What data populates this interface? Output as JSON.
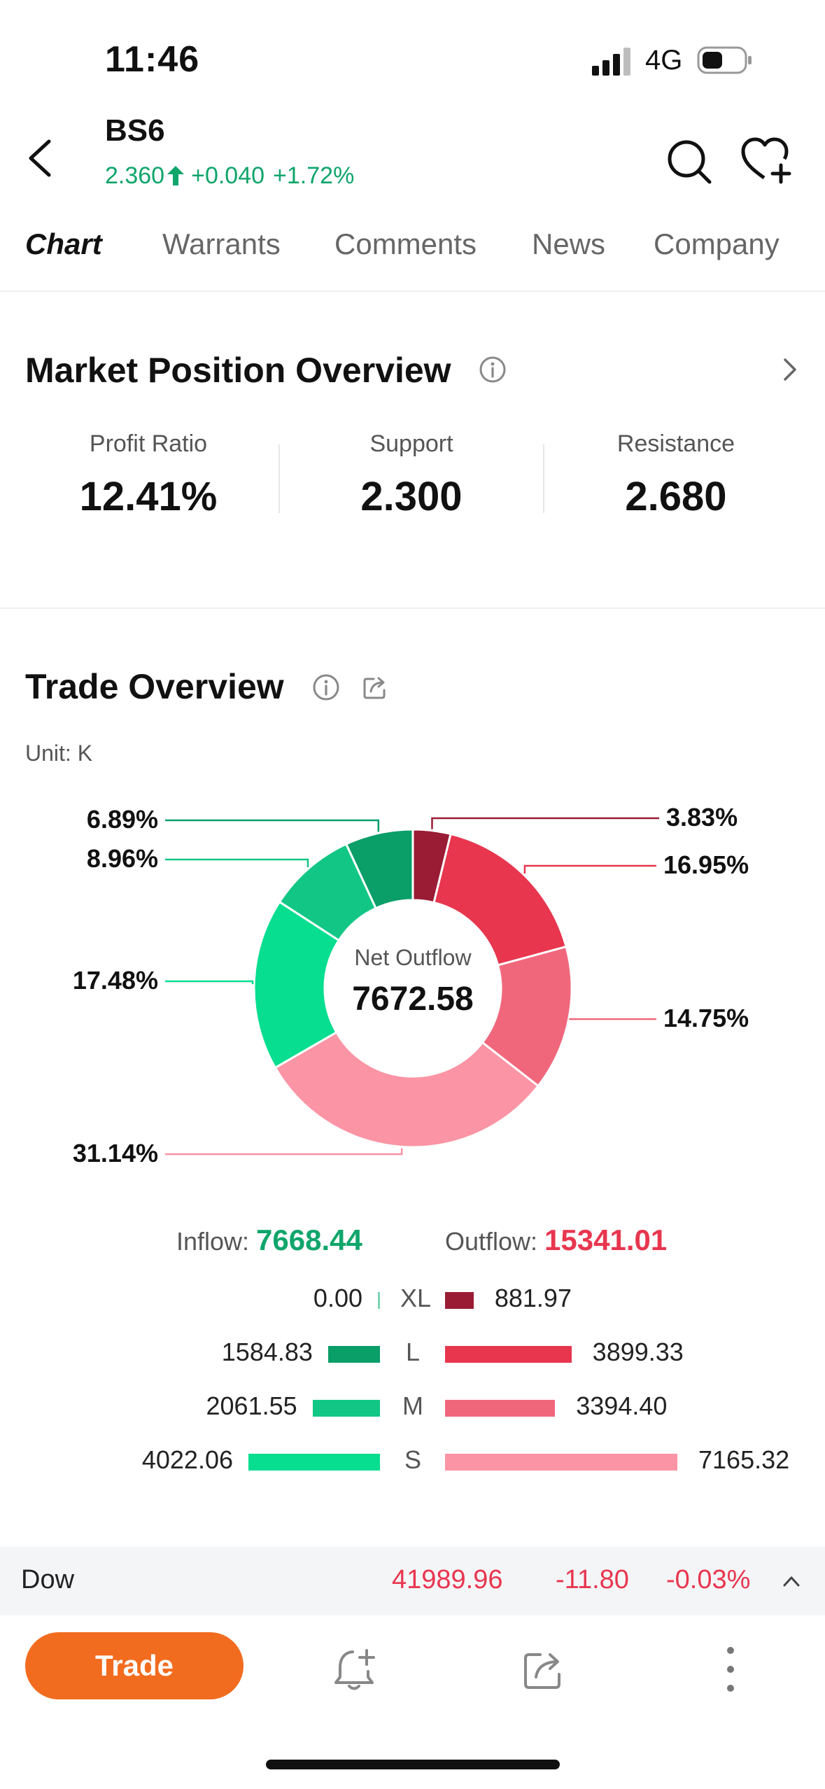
{
  "status_bar": {
    "time": "11:46",
    "network": "4G",
    "signal_icon": "signal-bars-icon",
    "battery_icon": "battery-icon"
  },
  "header": {
    "ticker": "BS6",
    "price": "2.360",
    "change": "+0.040",
    "change_pct": "+1.72%",
    "up_color": "#10a56b",
    "icons": [
      "back-arrow-icon",
      "up-arrow-icon",
      "search-icon",
      "heart-plus-icon"
    ]
  },
  "tabs": [
    {
      "label": "Chart",
      "active": true
    },
    {
      "label": "Warrants",
      "active": false
    },
    {
      "label": "Comments",
      "active": false
    },
    {
      "label": "News",
      "active": false
    },
    {
      "label": "Company",
      "active": false
    }
  ],
  "market_position": {
    "title": "Market Position Overview",
    "stats": [
      {
        "label": "Profit Ratio",
        "value": "12.41%"
      },
      {
        "label": "Support",
        "value": "2.300"
      },
      {
        "label": "Resistance",
        "value": "2.680"
      }
    ]
  },
  "trade_overview": {
    "title": "Trade Overview",
    "unit": "Unit: K",
    "center_label": "Net Outflow",
    "center_value": "7672.58",
    "inflow_label": "Inflow:",
    "inflow_value": "7668.44",
    "outflow_label": "Outflow:",
    "outflow_value": "15341.01",
    "rows": [
      {
        "size": "XL",
        "inflow": "0.00",
        "outflow": "881.97",
        "inflow_num": 0.0,
        "outflow_num": 881.97
      },
      {
        "size": "L",
        "inflow": "1584.83",
        "outflow": "3899.33",
        "inflow_num": 1584.83,
        "outflow_num": 3899.33
      },
      {
        "size": "M",
        "inflow": "2061.55",
        "outflow": "3394.40",
        "inflow_num": 2061.55,
        "outflow_num": 3394.4
      },
      {
        "size": "S",
        "inflow": "4022.06",
        "outflow": "7165.32",
        "inflow_num": 4022.06,
        "outflow_num": 7165.32
      }
    ],
    "inflow_colors": [
      "#7ad6b0",
      "#0a9e68",
      "#12c786",
      "#08de8f"
    ],
    "outflow_colors": [
      "#9a1c34",
      "#e8364f",
      "#f0677c",
      "#fb94a4"
    ]
  },
  "chart_data": {
    "type": "pie",
    "center_label": "Net Outflow",
    "center_value": 7672.58,
    "slices": [
      {
        "label": "3.83%",
        "value": 3.83,
        "color": "#9a1c34"
      },
      {
        "label": "16.95%",
        "value": 16.95,
        "color": "#e8364f"
      },
      {
        "label": "14.75%",
        "value": 14.75,
        "color": "#f0677c"
      },
      {
        "label": "31.14%",
        "value": 31.14,
        "color": "#fb94a4"
      },
      {
        "label": "17.48%",
        "value": 17.48,
        "color": "#08de8f"
      },
      {
        "label": "8.96%",
        "value": 8.96,
        "color": "#12c786"
      },
      {
        "label": "6.89%",
        "value": 6.89,
        "color": "#0a9e68"
      }
    ]
  },
  "index_ticker": {
    "name": "Dow",
    "value": "41989.96",
    "change": "-11.80",
    "change_pct": "-0.03%",
    "down_color": "#e8364f"
  },
  "toolbar": {
    "trade_label": "Trade",
    "accent": "#f26c1f",
    "icons": [
      "bell-plus-icon",
      "share-icon",
      "more-vertical-icon"
    ]
  }
}
